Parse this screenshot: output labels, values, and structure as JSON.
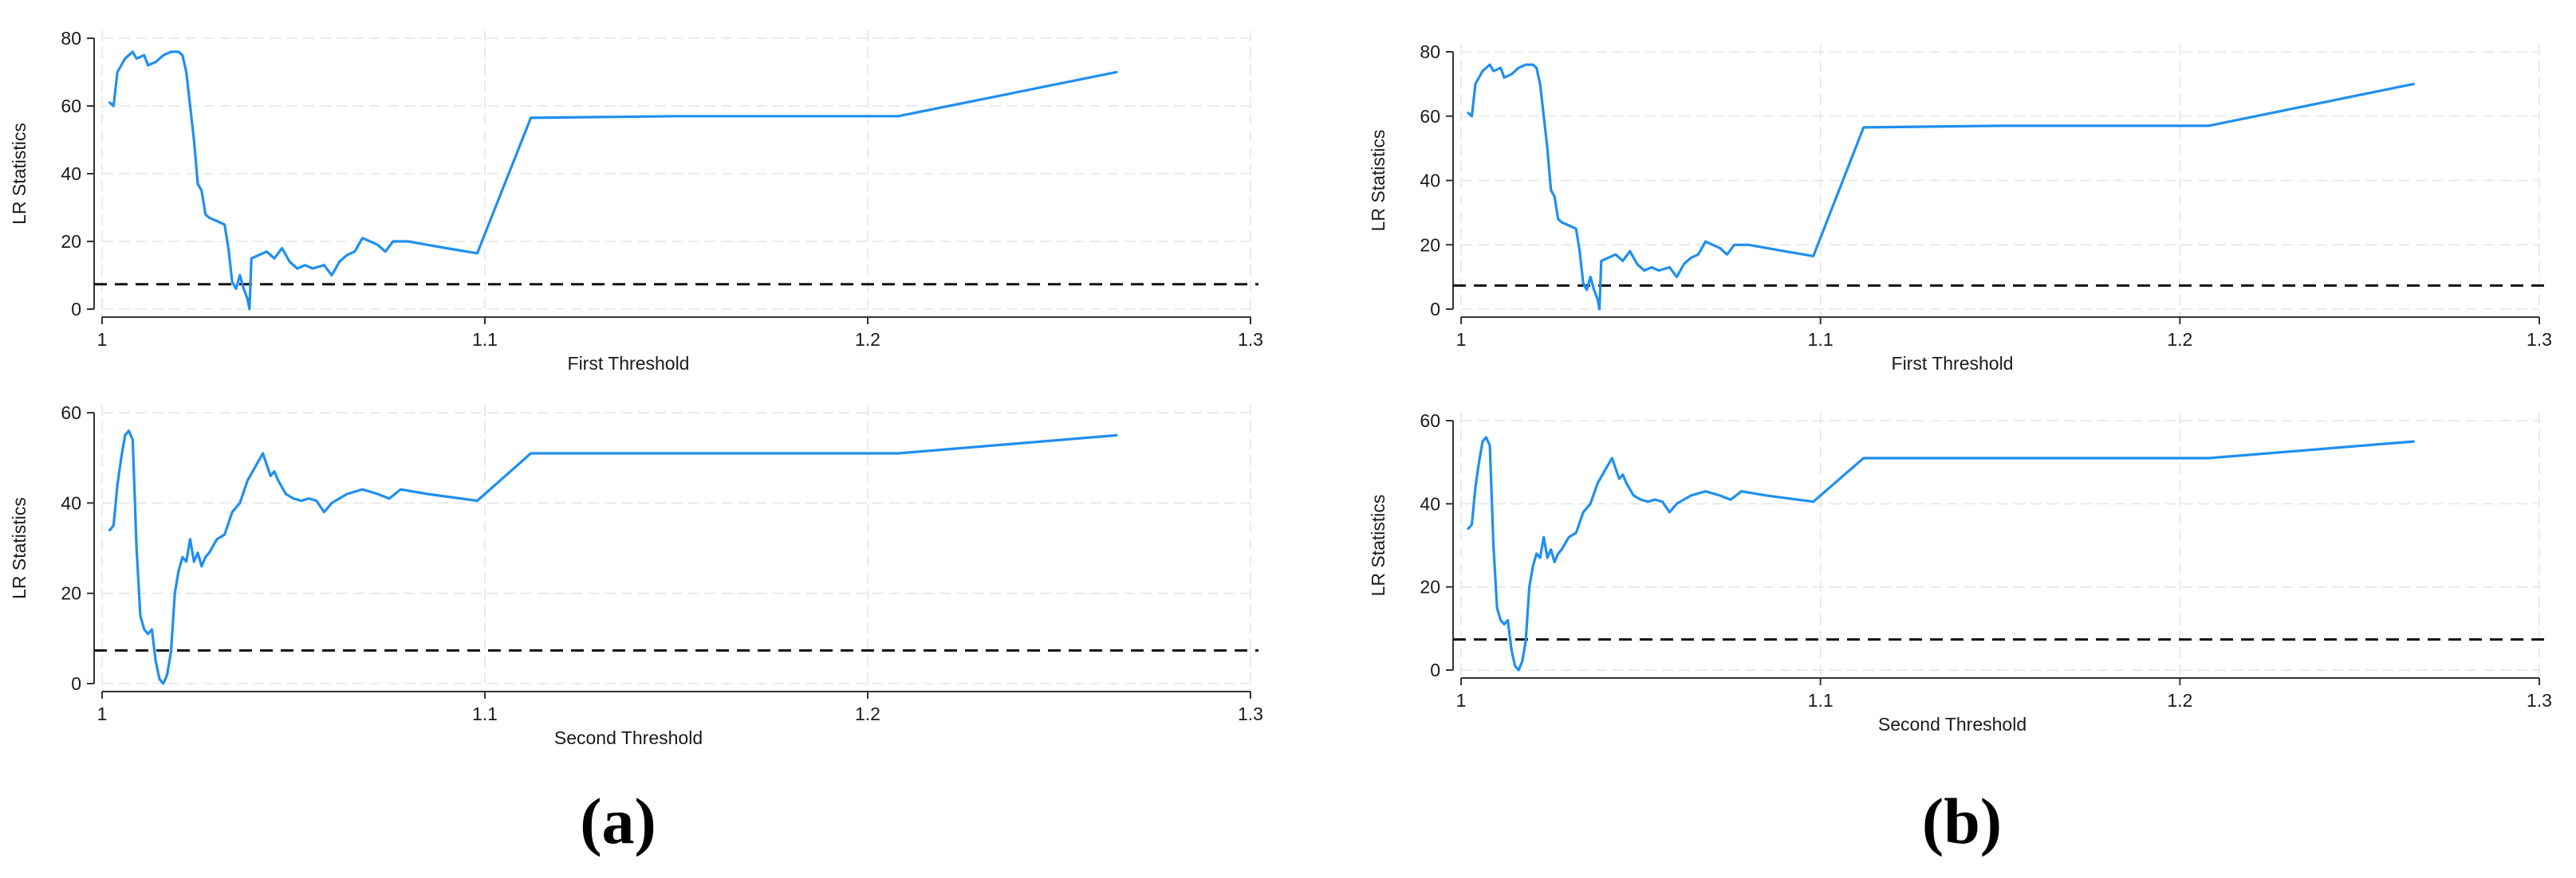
{
  "figure_labels": [
    "(a)",
    "(b)"
  ],
  "chart_data": [
    {
      "id": "a-top",
      "type": "line",
      "panel": "(a)",
      "xlabel": "First Threshold",
      "ylabel": "LR Statistics",
      "xlim": [
        1.0,
        1.3
      ],
      "ylim": [
        0,
        80
      ],
      "xticks": [
        "1",
        "1.1",
        "1.2",
        "1.3"
      ],
      "xtick_values": [
        1.0,
        1.1,
        1.2,
        1.3
      ],
      "yticks": [
        "0",
        "20",
        "40",
        "60",
        "80"
      ],
      "ytick_values": [
        0,
        20,
        40,
        60,
        80
      ],
      "grid": true,
      "reference_line": 7.35,
      "series": [
        {
          "color": "#1f8ff0",
          "x": [
            1.002,
            1.003,
            1.004,
            1.006,
            1.008,
            1.009,
            1.011,
            1.012,
            1.014,
            1.016,
            1.018,
            1.02,
            1.021,
            1.022,
            1.023,
            1.024,
            1.025,
            1.026,
            1.027,
            1.028,
            1.03,
            1.032,
            1.033,
            1.034,
            1.035,
            1.036,
            1.037,
            1.038,
            1.0385,
            1.039,
            1.041,
            1.043,
            1.045,
            1.047,
            1.049,
            1.051,
            1.053,
            1.055,
            1.058,
            1.06,
            1.062,
            1.064,
            1.066,
            1.068,
            1.07,
            1.072,
            1.074,
            1.076,
            1.08,
            1.085,
            1.09,
            1.098,
            1.112,
            1.15,
            1.208,
            1.265
          ],
          "y": [
            61,
            60,
            70,
            74,
            76,
            74,
            75,
            72,
            73,
            75,
            76,
            76,
            75,
            70,
            60,
            50,
            37,
            35,
            28,
            27,
            26,
            25,
            18,
            8,
            6,
            10,
            6,
            3,
            0,
            15,
            16,
            17,
            15,
            18,
            14,
            12,
            13,
            12,
            13,
            10,
            14,
            16,
            17,
            21,
            20,
            19,
            17,
            20,
            20,
            19,
            18,
            16.5,
            56.5,
            57,
            57,
            70
          ]
        }
      ]
    },
    {
      "id": "a-bottom",
      "type": "line",
      "panel": "(a)",
      "xlabel": "Second Threshold",
      "ylabel": "LR Statistics",
      "xlim": [
        1.0,
        1.3
      ],
      "ylim": [
        0,
        60
      ],
      "xticks": [
        "1",
        "1.1",
        "1.2",
        "1.3"
      ],
      "xtick_values": [
        1.0,
        1.1,
        1.2,
        1.3
      ],
      "yticks": [
        "0",
        "20",
        "40",
        "60"
      ],
      "ytick_values": [
        0,
        20,
        40,
        60
      ],
      "grid": true,
      "reference_line": 7.35,
      "series": [
        {
          "color": "#1f8ff0",
          "x": [
            1.002,
            1.003,
            1.004,
            1.005,
            1.006,
            1.007,
            1.008,
            1.009,
            1.01,
            1.011,
            1.012,
            1.013,
            1.014,
            1.015,
            1.016,
            1.017,
            1.018,
            1.019,
            1.02,
            1.021,
            1.022,
            1.023,
            1.024,
            1.025,
            1.026,
            1.027,
            1.028,
            1.03,
            1.032,
            1.034,
            1.036,
            1.038,
            1.04,
            1.042,
            1.044,
            1.045,
            1.046,
            1.048,
            1.05,
            1.052,
            1.054,
            1.056,
            1.058,
            1.06,
            1.064,
            1.068,
            1.072,
            1.075,
            1.078,
            1.085,
            1.098,
            1.112,
            1.15,
            1.208,
            1.265
          ],
          "y": [
            34,
            35,
            44,
            50,
            55,
            56,
            54,
            30,
            15,
            12,
            11,
            12,
            5,
            1,
            0,
            2,
            7,
            20,
            25,
            28,
            27,
            32,
            27,
            29,
            26,
            28,
            29,
            32,
            33,
            38,
            40,
            45,
            48,
            51,
            46,
            47,
            45,
            42,
            41,
            40.5,
            41,
            40.5,
            38,
            40,
            42,
            43,
            42,
            41,
            43,
            42,
            40.5,
            51,
            51,
            51,
            55
          ]
        }
      ]
    },
    {
      "id": "b-top",
      "type": "line",
      "panel": "(b)",
      "xlabel": "First Threshold",
      "ylabel": "LR Statistics",
      "xlim": [
        1.0,
        1.3
      ],
      "ylim": [
        0,
        80
      ],
      "xticks": [
        "1",
        "1.1",
        "1.2",
        "1.3"
      ],
      "xtick_values": [
        1.0,
        1.1,
        1.2,
        1.3
      ],
      "yticks": [
        "0",
        "20",
        "40",
        "60",
        "80"
      ],
      "ytick_values": [
        0,
        20,
        40,
        60,
        80
      ],
      "grid": true,
      "reference_line": 7.35,
      "series": [
        {
          "color": "#1f8ff0",
          "x": [
            1.002,
            1.003,
            1.004,
            1.006,
            1.008,
            1.009,
            1.011,
            1.012,
            1.014,
            1.016,
            1.018,
            1.02,
            1.021,
            1.022,
            1.023,
            1.024,
            1.025,
            1.026,
            1.027,
            1.028,
            1.03,
            1.032,
            1.033,
            1.034,
            1.035,
            1.036,
            1.037,
            1.038,
            1.0385,
            1.039,
            1.041,
            1.043,
            1.045,
            1.047,
            1.049,
            1.051,
            1.053,
            1.055,
            1.058,
            1.06,
            1.062,
            1.064,
            1.066,
            1.068,
            1.07,
            1.072,
            1.074,
            1.076,
            1.08,
            1.085,
            1.09,
            1.098,
            1.112,
            1.15,
            1.208,
            1.265
          ],
          "y": [
            61,
            60,
            70,
            74,
            76,
            74,
            75,
            72,
            73,
            75,
            76,
            76,
            75,
            70,
            60,
            50,
            37,
            35,
            28,
            27,
            26,
            25,
            18,
            8,
            6,
            10,
            6,
            3,
            0,
            15,
            16,
            17,
            15,
            18,
            14,
            12,
            13,
            12,
            13,
            10,
            14,
            16,
            17,
            21,
            20,
            19,
            17,
            20,
            20,
            19,
            18,
            16.5,
            56.5,
            57,
            57,
            70
          ]
        }
      ]
    },
    {
      "id": "b-bottom",
      "type": "line",
      "panel": "(b)",
      "xlabel": "Second Threshold",
      "ylabel": "LR Statistics",
      "xlim": [
        1.0,
        1.3
      ],
      "ylim": [
        0,
        60
      ],
      "xticks": [
        "1",
        "1.1",
        "1.2",
        "1.3"
      ],
      "xtick_values": [
        1.0,
        1.1,
        1.2,
        1.3
      ],
      "yticks": [
        "0",
        "20",
        "40",
        "60"
      ],
      "ytick_values": [
        0,
        20,
        40,
        60
      ],
      "grid": true,
      "reference_line": 7.35,
      "series": [
        {
          "color": "#1f8ff0",
          "x": [
            1.002,
            1.003,
            1.004,
            1.005,
            1.006,
            1.007,
            1.008,
            1.009,
            1.01,
            1.011,
            1.012,
            1.013,
            1.014,
            1.015,
            1.016,
            1.017,
            1.018,
            1.019,
            1.02,
            1.021,
            1.022,
            1.023,
            1.024,
            1.025,
            1.026,
            1.027,
            1.028,
            1.03,
            1.032,
            1.034,
            1.036,
            1.038,
            1.04,
            1.042,
            1.044,
            1.045,
            1.046,
            1.048,
            1.05,
            1.052,
            1.054,
            1.056,
            1.058,
            1.06,
            1.064,
            1.068,
            1.072,
            1.075,
            1.078,
            1.085,
            1.098,
            1.112,
            1.15,
            1.208,
            1.265
          ],
          "y": [
            34,
            35,
            44,
            50,
            55,
            56,
            54,
            30,
            15,
            12,
            11,
            12,
            5,
            1,
            0,
            2,
            7,
            20,
            25,
            28,
            27,
            32,
            27,
            29,
            26,
            28,
            29,
            32,
            33,
            38,
            40,
            45,
            48,
            51,
            46,
            47,
            45,
            42,
            41,
            40.5,
            41,
            40.5,
            38,
            40,
            42,
            43,
            42,
            41,
            43,
            42,
            40.5,
            51,
            51,
            51,
            55
          ]
        }
      ]
    }
  ]
}
